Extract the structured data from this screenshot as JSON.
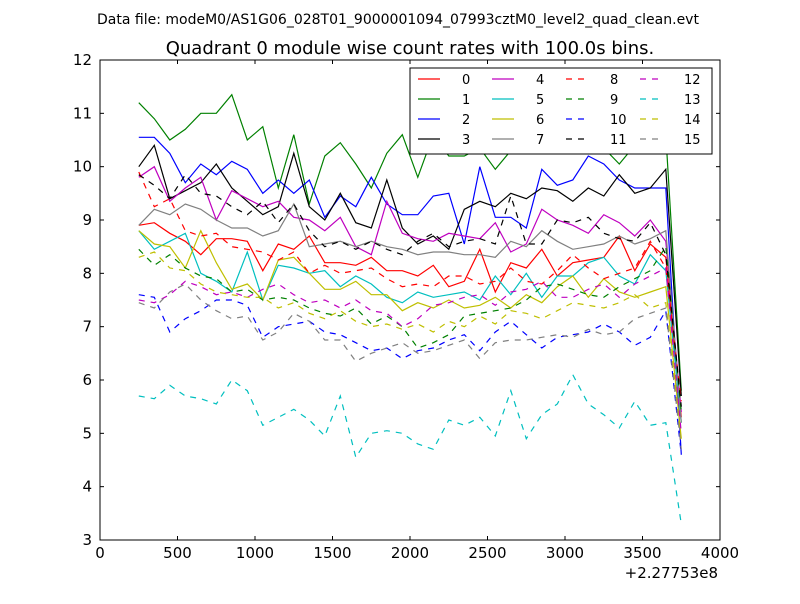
{
  "header": {
    "data_file": "Data file: modeM0/AS1G06_028T01_9000001094_07993cztM0_level2_quad_clean.evt"
  },
  "chart_data": {
    "type": "line",
    "title": "Quadrant 0 module wise count rates with 100.0s bins.",
    "xlabel": "",
    "ylabel": "",
    "x_offset_label": "+2.27753e8",
    "xlim": [
      0,
      4000
    ],
    "ylim": [
      3,
      12
    ],
    "x_ticks": [
      0,
      500,
      1000,
      1500,
      2000,
      2500,
      3000,
      3500,
      4000
    ],
    "y_ticks": [
      3,
      4,
      5,
      6,
      7,
      8,
      9,
      10,
      11,
      12
    ],
    "grid": false,
    "legend_position": "top-right",
    "x": [
      250,
      350,
      450,
      550,
      650,
      750,
      850,
      950,
      1050,
      1150,
      1250,
      1350,
      1450,
      1550,
      1650,
      1750,
      1850,
      1950,
      2050,
      2150,
      2250,
      2350,
      2450,
      2550,
      2650,
      2750,
      2850,
      2950,
      3050,
      3150,
      3250,
      3350,
      3450,
      3550,
      3650,
      3750
    ],
    "series": [
      {
        "name": "0",
        "color": "#ff0000",
        "dash": "solid",
        "values": [
          8.9,
          8.95,
          8.75,
          8.6,
          8.35,
          8.65,
          8.65,
          8.6,
          8.05,
          8.55,
          8.45,
          8.7,
          8.2,
          8.2,
          8.15,
          8.3,
          8.05,
          8.05,
          7.95,
          8.15,
          7.75,
          7.85,
          8.45,
          7.65,
          8.2,
          8.1,
          8.45,
          7.95,
          8.2,
          8.25,
          8.3,
          8.7,
          8.05,
          8.55,
          8.3,
          5.3
        ]
      },
      {
        "name": "1",
        "color": "#008000",
        "dash": "solid",
        "values": [
          11.2,
          10.9,
          10.5,
          10.7,
          11.0,
          11.0,
          11.35,
          10.5,
          10.75,
          9.6,
          10.6,
          9.3,
          10.2,
          10.45,
          10.05,
          9.6,
          10.25,
          10.6,
          9.8,
          10.6,
          10.2,
          10.2,
          10.35,
          9.95,
          10.3,
          10.4,
          10.55,
          10.4,
          10.4,
          10.3,
          10.35,
          10.05,
          10.4,
          10.5,
          10.6,
          5.8
        ]
      },
      {
        "name": "2",
        "color": "#0000ff",
        "dash": "solid",
        "values": [
          10.55,
          10.55,
          10.25,
          9.7,
          10.05,
          9.85,
          10.1,
          9.95,
          9.5,
          9.75,
          9.5,
          9.75,
          9.05,
          9.45,
          9.25,
          9.8,
          9.3,
          9.1,
          9.1,
          9.45,
          9.5,
          8.55,
          10.0,
          9.05,
          9.05,
          8.85,
          9.95,
          9.65,
          9.75,
          10.2,
          10.05,
          9.75,
          9.6,
          9.6,
          9.6,
          4.6
        ]
      },
      {
        "name": "3",
        "color": "#000000",
        "dash": "solid",
        "values": [
          10.0,
          10.4,
          9.4,
          9.55,
          9.7,
          10.05,
          9.6,
          9.35,
          9.1,
          9.25,
          10.25,
          9.25,
          9.0,
          9.5,
          8.95,
          8.85,
          9.75,
          8.85,
          8.55,
          8.7,
          8.45,
          9.2,
          9.35,
          9.25,
          9.5,
          9.4,
          9.6,
          9.55,
          9.35,
          9.6,
          9.45,
          9.85,
          9.5,
          9.6,
          9.95,
          5.7
        ]
      },
      {
        "name": "4",
        "color": "#bf00bf",
        "dash": "solid",
        "values": [
          9.8,
          10.0,
          9.35,
          9.6,
          9.8,
          9.0,
          9.55,
          9.4,
          9.25,
          9.35,
          9.05,
          9.0,
          8.8,
          9.05,
          8.5,
          8.35,
          9.35,
          8.75,
          8.65,
          8.6,
          8.75,
          8.7,
          8.65,
          8.95,
          8.4,
          8.55,
          9.2,
          9.0,
          8.9,
          8.75,
          9.1,
          8.95,
          8.7,
          9.0,
          8.6,
          5.4
        ]
      },
      {
        "name": "5",
        "color": "#00bfbf",
        "dash": "solid",
        "values": [
          8.8,
          8.45,
          8.6,
          8.75,
          8.0,
          7.85,
          7.65,
          8.4,
          7.5,
          8.15,
          8.1,
          8.0,
          8.05,
          7.75,
          7.95,
          7.8,
          7.55,
          7.45,
          7.65,
          7.55,
          7.6,
          7.65,
          7.5,
          7.95,
          7.6,
          8.0,
          7.55,
          7.95,
          7.95,
          8.2,
          8.3,
          7.95,
          7.8,
          8.35,
          8.05,
          5.2
        ]
      },
      {
        "name": "6",
        "color": "#bfbf00",
        "dash": "solid",
        "values": [
          8.8,
          8.55,
          8.5,
          8.1,
          8.8,
          8.2,
          7.7,
          7.8,
          7.5,
          8.25,
          8.3,
          8.0,
          7.7,
          7.7,
          7.85,
          7.6,
          7.6,
          7.3,
          7.45,
          7.35,
          7.5,
          7.35,
          7.4,
          7.55,
          7.35,
          7.6,
          7.45,
          7.75,
          7.95,
          7.55,
          7.9,
          7.65,
          7.55,
          7.65,
          7.75,
          4.9
        ]
      },
      {
        "name": "7",
        "color": "#808080",
        "dash": "solid",
        "values": [
          8.9,
          9.2,
          9.1,
          9.3,
          9.2,
          9.0,
          8.85,
          8.85,
          8.7,
          8.8,
          9.3,
          8.5,
          8.55,
          8.6,
          8.5,
          8.6,
          8.5,
          8.45,
          8.35,
          8.4,
          8.4,
          8.35,
          8.35,
          8.3,
          8.6,
          8.5,
          8.8,
          8.6,
          8.45,
          8.5,
          8.55,
          8.7,
          8.55,
          8.65,
          8.8,
          5.2
        ]
      },
      {
        "name": "8",
        "color": "#ff0000",
        "dash": "dashed",
        "values": [
          9.9,
          9.25,
          9.4,
          8.8,
          8.7,
          8.75,
          8.5,
          8.45,
          8.4,
          8.25,
          8.4,
          8.0,
          8.15,
          8.0,
          8.05,
          8.1,
          7.9,
          7.75,
          7.8,
          7.75,
          7.95,
          7.95,
          7.8,
          7.85,
          8.1,
          7.85,
          7.8,
          8.05,
          8.35,
          8.1,
          7.9,
          8.0,
          8.1,
          8.6,
          8.1,
          5.6
        ]
      },
      {
        "name": "9",
        "color": "#008000",
        "dash": "dashed",
        "values": [
          8.45,
          8.15,
          8.35,
          8.1,
          7.95,
          7.9,
          7.65,
          7.7,
          7.5,
          7.55,
          7.5,
          7.35,
          7.25,
          7.2,
          7.35,
          7.05,
          7.2,
          7.0,
          6.6,
          6.7,
          6.85,
          7.2,
          7.25,
          7.3,
          7.35,
          7.5,
          7.75,
          7.8,
          7.7,
          7.6,
          7.55,
          7.75,
          7.9,
          8.05,
          8.5,
          5.4
        ]
      },
      {
        "name": "10",
        "color": "#0000ff",
        "dash": "dashed",
        "values": [
          7.6,
          7.55,
          6.9,
          7.15,
          7.3,
          7.5,
          7.5,
          7.4,
          6.8,
          7.0,
          7.05,
          7.1,
          6.9,
          6.85,
          6.7,
          6.55,
          6.6,
          6.4,
          6.55,
          6.6,
          6.75,
          6.85,
          6.55,
          6.9,
          7.1,
          6.85,
          6.6,
          6.8,
          6.85,
          6.9,
          7.05,
          6.9,
          6.65,
          6.8,
          7.3,
          4.6
        ]
      },
      {
        "name": "11",
        "color": "#000000",
        "dash": "dashed",
        "values": [
          9.85,
          9.65,
          9.4,
          9.85,
          9.5,
          9.45,
          9.25,
          9.1,
          9.35,
          8.95,
          9.3,
          8.8,
          8.5,
          8.6,
          8.45,
          8.6,
          8.45,
          8.35,
          8.6,
          8.75,
          8.5,
          8.6,
          8.65,
          8.55,
          9.45,
          8.55,
          8.55,
          9.0,
          8.95,
          9.05,
          8.75,
          8.65,
          8.6,
          8.95,
          8.35,
          5.5
        ]
      },
      {
        "name": "12",
        "color": "#bf00bf",
        "dash": "dashed",
        "values": [
          7.5,
          7.45,
          7.6,
          7.85,
          7.75,
          7.6,
          7.65,
          7.55,
          7.7,
          7.8,
          7.6,
          7.45,
          7.5,
          7.35,
          7.5,
          7.3,
          7.25,
          7.0,
          7.15,
          7.4,
          7.45,
          7.55,
          7.6,
          7.4,
          7.65,
          7.7,
          7.85,
          7.55,
          7.55,
          7.7,
          7.8,
          7.55,
          7.8,
          7.95,
          8.1,
          5.0
        ]
      },
      {
        "name": "13",
        "color": "#00bfbf",
        "dash": "dashed",
        "values": [
          5.7,
          5.65,
          5.9,
          5.7,
          5.65,
          5.55,
          6.0,
          5.8,
          5.15,
          5.3,
          5.45,
          5.25,
          4.95,
          5.7,
          4.55,
          5.0,
          5.05,
          5.0,
          4.8,
          4.7,
          5.25,
          5.15,
          5.3,
          4.95,
          5.8,
          4.9,
          5.35,
          5.55,
          6.1,
          5.55,
          5.35,
          5.1,
          5.6,
          5.15,
          5.2,
          3.3
        ]
      },
      {
        "name": "14",
        "color": "#bfbf00",
        "dash": "dashed",
        "values": [
          8.3,
          8.4,
          8.1,
          8.05,
          7.8,
          7.65,
          7.6,
          7.55,
          7.55,
          7.35,
          7.45,
          7.25,
          7.15,
          7.3,
          7.1,
          7.0,
          7.05,
          6.95,
          7.05,
          6.9,
          7.1,
          7.0,
          7.2,
          7.05,
          7.3,
          7.25,
          7.15,
          7.3,
          7.45,
          7.4,
          7.35,
          7.45,
          7.6,
          7.35,
          7.45,
          4.8
        ]
      },
      {
        "name": "15",
        "color": "#808080",
        "dash": "dashed",
        "values": [
          7.45,
          7.35,
          7.65,
          7.8,
          7.5,
          7.3,
          7.15,
          7.2,
          6.75,
          6.9,
          7.25,
          7.1,
          6.75,
          6.75,
          6.35,
          6.5,
          6.6,
          6.7,
          6.5,
          6.55,
          6.65,
          6.75,
          6.4,
          6.7,
          6.75,
          6.75,
          6.8,
          6.85,
          6.8,
          6.95,
          6.85,
          6.9,
          7.15,
          7.25,
          7.35,
          4.7
        ]
      }
    ]
  }
}
